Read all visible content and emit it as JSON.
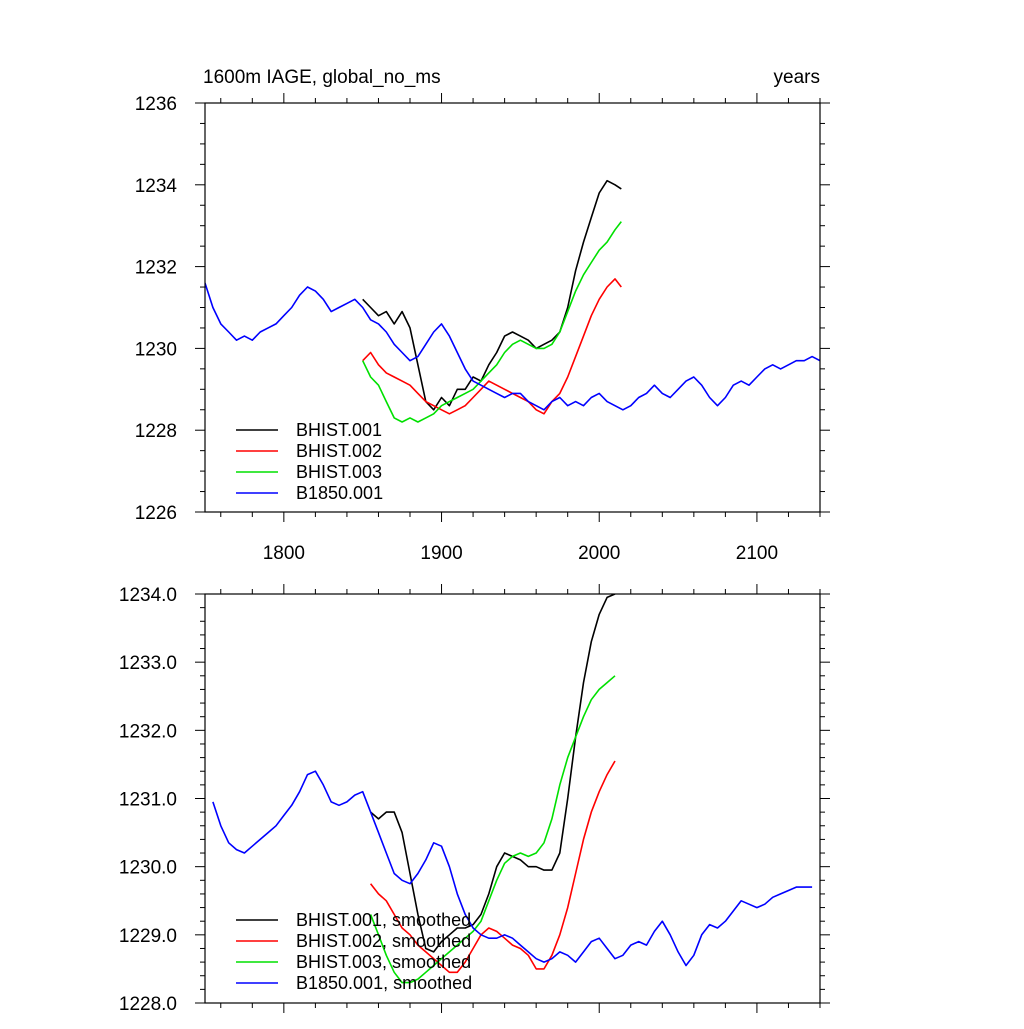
{
  "chart_data": [
    {
      "type": "line",
      "title": "1600m IAGE, global_no_ms",
      "right_title": "years",
      "xlim": [
        1750,
        2140
      ],
      "ylim": [
        1226,
        1236
      ],
      "x_ticks": [
        1800,
        1900,
        2000,
        2100
      ],
      "x_tick_labels": [
        "1800",
        "1900",
        "2000",
        "2100"
      ],
      "y_ticks": [
        1226,
        1228,
        1230,
        1232,
        1234,
        1236
      ],
      "y_tick_labels": [
        "1226",
        "1228",
        "1230",
        "1232",
        "1234",
        "1236"
      ],
      "legend_position": "bottom-left",
      "grid": false,
      "series": [
        {
          "name": "BHIST.001",
          "color": "#000000",
          "x": [
            1850,
            1855,
            1860,
            1865,
            1870,
            1875,
            1880,
            1885,
            1890,
            1895,
            1900,
            1905,
            1910,
            1915,
            1920,
            1925,
            1930,
            1935,
            1940,
            1945,
            1950,
            1955,
            1960,
            1965,
            1970,
            1975,
            1980,
            1985,
            1990,
            1995,
            2000,
            2005,
            2010,
            2014
          ],
          "y": [
            1231.2,
            1231.0,
            1230.8,
            1230.9,
            1230.6,
            1230.9,
            1230.5,
            1229.6,
            1228.7,
            1228.5,
            1228.8,
            1228.6,
            1229.0,
            1229.0,
            1229.3,
            1229.2,
            1229.6,
            1229.9,
            1230.3,
            1230.4,
            1230.3,
            1230.2,
            1230.0,
            1230.1,
            1230.2,
            1230.4,
            1231.0,
            1231.9,
            1232.6,
            1233.2,
            1233.8,
            1234.1,
            1234.0,
            1233.9
          ]
        },
        {
          "name": "BHIST.002",
          "color": "#ff0000",
          "x": [
            1850,
            1855,
            1860,
            1865,
            1870,
            1875,
            1880,
            1885,
            1890,
            1895,
            1900,
            1905,
            1910,
            1915,
            1920,
            1925,
            1930,
            1935,
            1940,
            1945,
            1950,
            1955,
            1960,
            1965,
            1970,
            1975,
            1980,
            1985,
            1990,
            1995,
            2000,
            2005,
            2010,
            2014
          ],
          "y": [
            1229.7,
            1229.9,
            1229.6,
            1229.4,
            1229.3,
            1229.2,
            1229.1,
            1228.9,
            1228.7,
            1228.6,
            1228.5,
            1228.4,
            1228.5,
            1228.6,
            1228.8,
            1229.0,
            1229.2,
            1229.1,
            1229.0,
            1228.9,
            1228.8,
            1228.7,
            1228.5,
            1228.4,
            1228.7,
            1228.9,
            1229.3,
            1229.8,
            1230.3,
            1230.8,
            1231.2,
            1231.5,
            1231.7,
            1231.5
          ]
        },
        {
          "name": "BHIST.003",
          "color": "#00e000",
          "x": [
            1850,
            1855,
            1860,
            1865,
            1870,
            1875,
            1880,
            1885,
            1890,
            1895,
            1900,
            1905,
            1910,
            1915,
            1920,
            1925,
            1930,
            1935,
            1940,
            1945,
            1950,
            1955,
            1960,
            1965,
            1970,
            1975,
            1980,
            1985,
            1990,
            1995,
            2000,
            2005,
            2010,
            2014
          ],
          "y": [
            1229.7,
            1229.3,
            1229.1,
            1228.7,
            1228.3,
            1228.2,
            1228.3,
            1228.2,
            1228.3,
            1228.4,
            1228.6,
            1228.7,
            1228.8,
            1228.9,
            1229.0,
            1229.2,
            1229.4,
            1229.6,
            1229.9,
            1230.1,
            1230.2,
            1230.1,
            1230.0,
            1230.0,
            1230.1,
            1230.4,
            1230.9,
            1231.4,
            1231.8,
            1232.1,
            1232.4,
            1232.6,
            1232.9,
            1233.1
          ]
        },
        {
          "name": "B1850.001",
          "color": "#0000ff",
          "x": [
            1750,
            1755,
            1760,
            1765,
            1770,
            1775,
            1780,
            1785,
            1790,
            1795,
            1800,
            1805,
            1810,
            1815,
            1820,
            1825,
            1830,
            1835,
            1840,
            1845,
            1850,
            1855,
            1860,
            1865,
            1870,
            1875,
            1880,
            1885,
            1890,
            1895,
            1900,
            1905,
            1910,
            1915,
            1920,
            1925,
            1930,
            1935,
            1940,
            1945,
            1950,
            1955,
            1960,
            1965,
            1970,
            1975,
            1980,
            1985,
            1990,
            1995,
            2000,
            2005,
            2010,
            2015,
            2020,
            2025,
            2030,
            2035,
            2040,
            2045,
            2050,
            2055,
            2060,
            2065,
            2070,
            2075,
            2080,
            2085,
            2090,
            2095,
            2100,
            2105,
            2110,
            2115,
            2120,
            2125,
            2130,
            2135,
            2140
          ],
          "y": [
            1231.6,
            1231.0,
            1230.6,
            1230.4,
            1230.2,
            1230.3,
            1230.2,
            1230.4,
            1230.5,
            1230.6,
            1230.8,
            1231.0,
            1231.3,
            1231.5,
            1231.4,
            1231.2,
            1230.9,
            1231.0,
            1231.1,
            1231.2,
            1231.0,
            1230.7,
            1230.6,
            1230.4,
            1230.1,
            1229.9,
            1229.7,
            1229.8,
            1230.1,
            1230.4,
            1230.6,
            1230.3,
            1229.9,
            1229.5,
            1229.2,
            1229.1,
            1229.0,
            1228.9,
            1228.8,
            1228.9,
            1228.9,
            1228.7,
            1228.6,
            1228.5,
            1228.7,
            1228.8,
            1228.6,
            1228.7,
            1228.6,
            1228.8,
            1228.9,
            1228.7,
            1228.6,
            1228.5,
            1228.6,
            1228.8,
            1228.9,
            1229.1,
            1228.9,
            1228.8,
            1229.0,
            1229.2,
            1229.3,
            1229.1,
            1228.8,
            1228.6,
            1228.8,
            1229.1,
            1229.2,
            1229.1,
            1229.3,
            1229.5,
            1229.6,
            1229.5,
            1229.6,
            1229.7,
            1229.7,
            1229.8,
            1229.7
          ]
        }
      ]
    },
    {
      "type": "line",
      "xlim": [
        1750,
        2140
      ],
      "ylim": [
        1228.0,
        1234.0
      ],
      "x_ticks": [
        1800,
        1900,
        2000,
        2100
      ],
      "x_tick_labels": [],
      "y_ticks": [
        1228.0,
        1229.0,
        1230.0,
        1231.0,
        1232.0,
        1233.0,
        1234.0
      ],
      "y_tick_labels": [
        "1228.0",
        "1229.0",
        "1230.0",
        "1231.0",
        "1232.0",
        "1233.0",
        "1234.0"
      ],
      "legend_position": "bottom-left",
      "grid": false,
      "series": [
        {
          "name": "BHIST.001, smoothed",
          "color": "#000000",
          "x": [
            1855,
            1860,
            1865,
            1870,
            1875,
            1880,
            1885,
            1890,
            1895,
            1900,
            1905,
            1910,
            1915,
            1920,
            1925,
            1930,
            1935,
            1940,
            1945,
            1950,
            1955,
            1960,
            1965,
            1970,
            1975,
            1980,
            1985,
            1990,
            1995,
            2000,
            2005,
            2010
          ],
          "y": [
            1230.8,
            1230.7,
            1230.8,
            1230.8,
            1230.5,
            1229.9,
            1229.3,
            1228.8,
            1228.75,
            1228.9,
            1229.0,
            1229.1,
            1229.1,
            1229.15,
            1229.3,
            1229.6,
            1230.0,
            1230.2,
            1230.15,
            1230.1,
            1230.0,
            1230.0,
            1229.95,
            1229.95,
            1230.2,
            1231.0,
            1231.9,
            1232.7,
            1233.3,
            1233.7,
            1233.95,
            1234.0
          ]
        },
        {
          "name": "BHIST.002, smoothed",
          "color": "#ff0000",
          "x": [
            1855,
            1860,
            1865,
            1870,
            1875,
            1880,
            1885,
            1890,
            1895,
            1900,
            1905,
            1910,
            1915,
            1920,
            1925,
            1930,
            1935,
            1940,
            1945,
            1950,
            1955,
            1960,
            1965,
            1970,
            1975,
            1980,
            1985,
            1990,
            1995,
            2000,
            2005,
            2010
          ],
          "y": [
            1229.75,
            1229.6,
            1229.5,
            1229.3,
            1229.1,
            1229.0,
            1228.85,
            1228.75,
            1228.65,
            1228.55,
            1228.45,
            1228.45,
            1228.6,
            1228.8,
            1229.0,
            1229.1,
            1229.05,
            1228.95,
            1228.85,
            1228.8,
            1228.7,
            1228.5,
            1228.5,
            1228.7,
            1229.0,
            1229.4,
            1229.9,
            1230.4,
            1230.8,
            1231.1,
            1231.35,
            1231.55
          ]
        },
        {
          "name": "BHIST.003, smoothed",
          "color": "#00e000",
          "x": [
            1855,
            1860,
            1865,
            1870,
            1875,
            1880,
            1885,
            1890,
            1895,
            1900,
            1905,
            1910,
            1915,
            1920,
            1925,
            1930,
            1935,
            1940,
            1945,
            1950,
            1955,
            1960,
            1965,
            1970,
            1975,
            1980,
            1985,
            1990,
            1995,
            2000,
            2005,
            2010
          ],
          "y": [
            1229.3,
            1229.0,
            1228.7,
            1228.45,
            1228.3,
            1228.3,
            1228.35,
            1228.45,
            1228.55,
            1228.65,
            1228.75,
            1228.85,
            1228.95,
            1229.05,
            1229.2,
            1229.5,
            1229.8,
            1230.05,
            1230.15,
            1230.2,
            1230.15,
            1230.2,
            1230.35,
            1230.7,
            1231.2,
            1231.6,
            1231.9,
            1232.2,
            1232.45,
            1232.6,
            1232.7,
            1232.8
          ]
        },
        {
          "name": "B1850.001, smoothed",
          "color": "#0000ff",
          "x": [
            1755,
            1760,
            1765,
            1770,
            1775,
            1780,
            1785,
            1790,
            1795,
            1800,
            1805,
            1810,
            1815,
            1820,
            1825,
            1830,
            1835,
            1840,
            1845,
            1850,
            1855,
            1860,
            1865,
            1870,
            1875,
            1880,
            1885,
            1890,
            1895,
            1900,
            1905,
            1910,
            1915,
            1920,
            1925,
            1930,
            1935,
            1940,
            1945,
            1950,
            1955,
            1960,
            1965,
            1970,
            1975,
            1980,
            1985,
            1990,
            1995,
            2000,
            2005,
            2010,
            2015,
            2020,
            2025,
            2030,
            2035,
            2040,
            2045,
            2050,
            2055,
            2060,
            2065,
            2070,
            2075,
            2080,
            2085,
            2090,
            2095,
            2100,
            2105,
            2110,
            2115,
            2120,
            2125,
            2130,
            2135
          ],
          "y": [
            1230.95,
            1230.6,
            1230.35,
            1230.25,
            1230.2,
            1230.3,
            1230.4,
            1230.5,
            1230.6,
            1230.75,
            1230.9,
            1231.1,
            1231.35,
            1231.4,
            1231.2,
            1230.95,
            1230.9,
            1230.95,
            1231.05,
            1231.1,
            1230.8,
            1230.5,
            1230.2,
            1229.9,
            1229.8,
            1229.75,
            1229.9,
            1230.1,
            1230.35,
            1230.3,
            1230.0,
            1229.6,
            1229.3,
            1229.1,
            1229.0,
            1228.95,
            1228.95,
            1229.0,
            1228.95,
            1228.85,
            1228.75,
            1228.65,
            1228.6,
            1228.65,
            1228.75,
            1228.7,
            1228.6,
            1228.75,
            1228.9,
            1228.95,
            1228.8,
            1228.65,
            1228.7,
            1228.85,
            1228.9,
            1228.85,
            1229.05,
            1229.2,
            1229.0,
            1228.75,
            1228.55,
            1228.7,
            1229.0,
            1229.15,
            1229.1,
            1229.2,
            1229.35,
            1229.5,
            1229.45,
            1229.4,
            1229.45,
            1229.55,
            1229.6,
            1229.65,
            1229.7,
            1229.7,
            1229.7
          ]
        }
      ]
    }
  ]
}
